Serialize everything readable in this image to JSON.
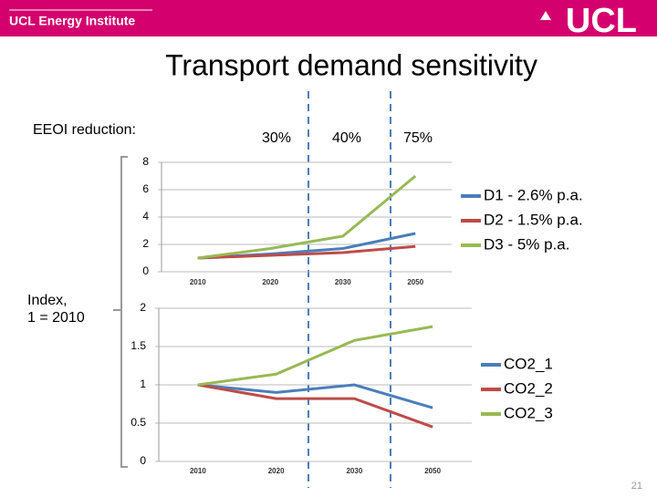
{
  "header": {
    "institute": "UCL Energy Institute",
    "logo": "UCL"
  },
  "title": "Transport demand sensitivity",
  "annotations": {
    "eeoi_label": "EEOI reduction:",
    "reductions": [
      "30%",
      "40%",
      "75%"
    ],
    "index_label": [
      "Index,",
      "1 = 2010"
    ]
  },
  "page_number": 21,
  "chart_data": [
    {
      "type": "line",
      "categories": [
        "2010",
        "2020",
        "2030",
        "2050"
      ],
      "ylim": [
        0,
        8
      ],
      "yticks": [
        0,
        2,
        4,
        6,
        8
      ],
      "grid": true,
      "legend": "right",
      "series": [
        {
          "name": "D1 - 2.6% p.a.",
          "color": "#4a7ebb",
          "values": [
            1,
            1.3,
            1.7,
            2.8
          ]
        },
        {
          "name": "D2 - 1.5% p.a.",
          "color": "#be4b48",
          "values": [
            1,
            1.2,
            1.4,
            1.85
          ]
        },
        {
          "name": "D3 - 5% p.a.",
          "color": "#98b954",
          "values": [
            1,
            1.7,
            2.6,
            7
          ]
        }
      ]
    },
    {
      "type": "line",
      "categories": [
        "2010",
        "2020",
        "2030",
        "2050"
      ],
      "ylim": [
        0,
        2
      ],
      "yticks": [
        0,
        0.5,
        1,
        1.5,
        2
      ],
      "grid": true,
      "legend": "right",
      "series": [
        {
          "name": "CO2_1",
          "color": "#4a7ebb",
          "values": [
            1,
            0.9,
            1.0,
            0.7
          ]
        },
        {
          "name": "CO2_2",
          "color": "#be4b48",
          "values": [
            1,
            0.82,
            0.82,
            0.45
          ]
        },
        {
          "name": "CO2_3",
          "color": "#98b954",
          "values": [
            1,
            1.14,
            1.58,
            1.76
          ]
        }
      ]
    }
  ]
}
